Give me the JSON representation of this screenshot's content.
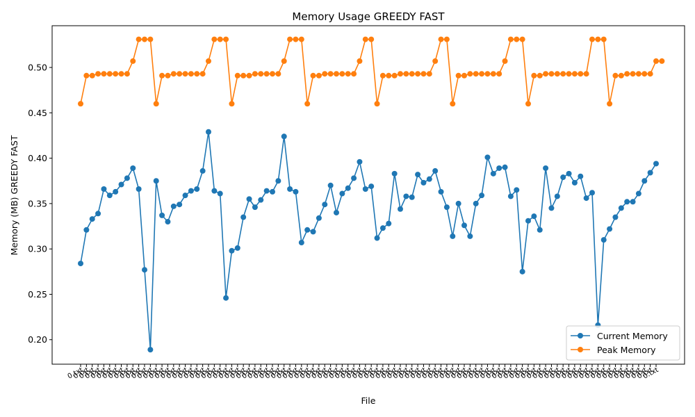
{
  "chart_data": {
    "type": "line",
    "title": "Memory Usage GREEDY FAST",
    "xlabel": "File",
    "ylabel": "Memory (MB) GREEDY FAST",
    "ylim": [
      0.173,
      0.546
    ],
    "yticks": [
      0.2,
      0.25,
      0.3,
      0.35,
      0.4,
      0.45,
      0.5
    ],
    "ytick_labels": [
      "0.20",
      "0.25",
      "0.30",
      "0.35",
      "0.40",
      "0.45",
      "0.50"
    ],
    "xtick_label_text": "0.txt",
    "grid": false,
    "legend_position": "lower-right",
    "series": [
      {
        "name": "Current Memory",
        "color": "#1f77b4",
        "values": [
          0.284,
          0.321,
          0.333,
          0.339,
          0.366,
          0.359,
          0.363,
          0.371,
          0.378,
          0.389,
          0.366,
          0.277,
          0.189,
          0.375,
          0.337,
          0.33,
          0.347,
          0.349,
          0.359,
          0.364,
          0.366,
          0.386,
          0.429,
          0.364,
          0.361,
          0.246,
          0.298,
          0.301,
          0.335,
          0.355,
          0.346,
          0.354,
          0.364,
          0.363,
          0.375,
          0.424,
          0.366,
          0.363,
          0.307,
          0.321,
          0.319,
          0.334,
          0.349,
          0.37,
          0.34,
          0.361,
          0.367,
          0.378,
          0.396,
          0.366,
          0.369,
          0.312,
          0.323,
          0.328,
          0.383,
          0.344,
          0.358,
          0.357,
          0.382,
          0.373,
          0.377,
          0.386,
          0.363,
          0.346,
          0.314,
          0.35,
          0.326,
          0.314,
          0.35,
          0.359,
          0.401,
          0.383,
          0.389,
          0.39,
          0.358,
          0.365,
          0.275,
          0.331,
          0.336,
          0.321,
          0.389,
          0.345,
          0.358,
          0.379,
          0.383,
          0.373,
          0.38,
          0.356,
          0.362,
          0.216,
          0.31,
          0.322,
          0.335,
          0.345,
          0.352,
          0.352,
          0.361,
          0.375,
          0.384,
          0.394
        ]
      },
      {
        "name": "Peak Memory",
        "color": "#ff7f0e",
        "values": [
          0.46,
          0.491,
          0.491,
          0.493,
          0.493,
          0.493,
          0.493,
          0.493,
          0.493,
          0.507,
          0.531,
          0.531,
          0.531,
          0.46,
          0.491,
          0.491,
          0.493,
          0.493,
          0.493,
          0.493,
          0.493,
          0.493,
          0.507,
          0.531,
          0.531,
          0.531,
          0.46,
          0.491,
          0.491,
          0.491,
          0.493,
          0.493,
          0.493,
          0.493,
          0.493,
          0.507,
          0.531,
          0.531,
          0.531,
          0.46,
          0.491,
          0.491,
          0.493,
          0.493,
          0.493,
          0.493,
          0.493,
          0.493,
          0.507,
          0.531,
          0.531,
          0.46,
          0.491,
          0.491,
          0.491,
          0.493,
          0.493,
          0.493,
          0.493,
          0.493,
          0.493,
          0.507,
          0.531,
          0.531,
          0.46,
          0.491,
          0.491,
          0.493,
          0.493,
          0.493,
          0.493,
          0.493,
          0.493,
          0.507,
          0.531,
          0.531,
          0.531,
          0.46,
          0.491,
          0.491,
          0.493,
          0.493,
          0.493,
          0.493,
          0.493,
          0.493,
          0.493,
          0.493,
          0.531,
          0.531,
          0.531,
          0.46,
          0.491,
          0.491,
          0.493,
          0.493,
          0.493,
          0.493,
          0.493,
          0.507,
          0.507
        ]
      }
    ]
  }
}
